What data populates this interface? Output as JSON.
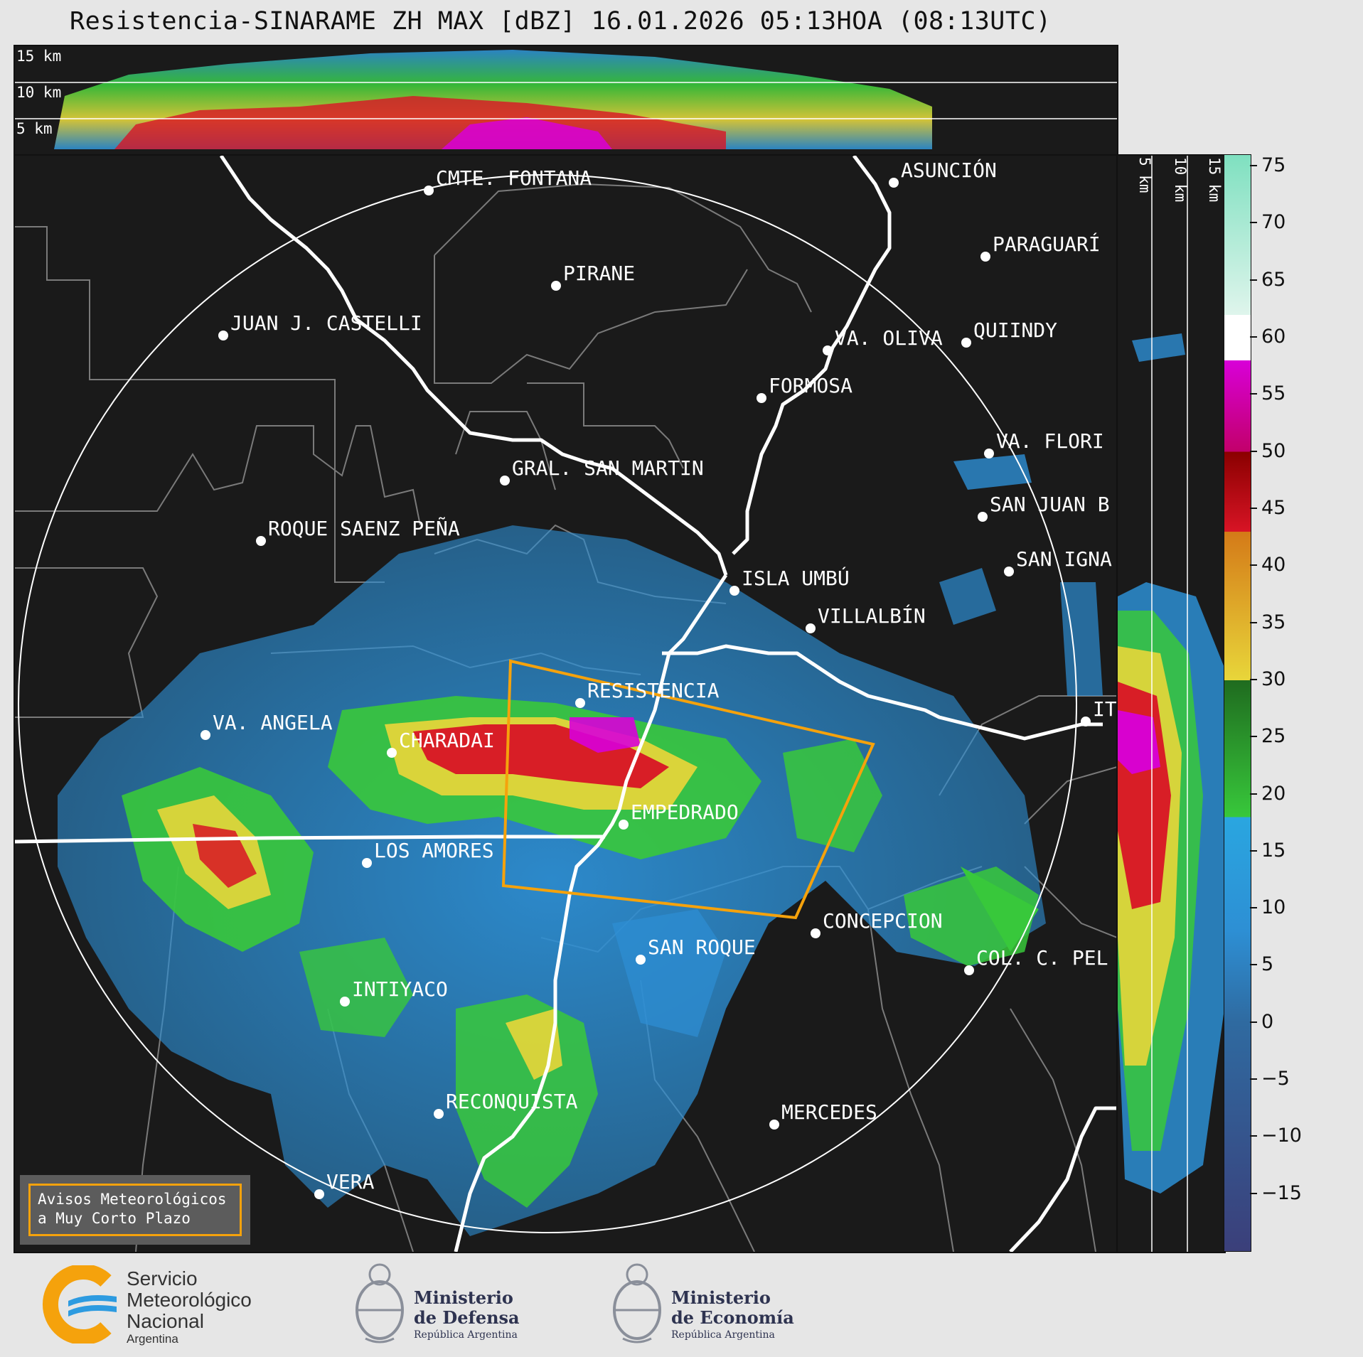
{
  "title": "Resistencia-SINARAME ZH MAX [dBZ] 16.01.2026 05:13HOA (08:13UTC)",
  "top_panel": {
    "height_labels": [
      "15 km",
      "10 km",
      "5 km"
    ]
  },
  "side_panel": {
    "height_labels": [
      "5 km",
      "10 km",
      "15 km"
    ]
  },
  "colorbar": {
    "unit": "dBZ",
    "ticks": [
      "75",
      "70",
      "65",
      "60",
      "55",
      "50",
      "45",
      "40",
      "35",
      "30",
      "25",
      "20",
      "15",
      "10",
      "5",
      "0",
      "−5",
      "−10",
      "−15"
    ],
    "colors": {
      "range_-20_0": "#3b3f7a",
      "range_0_18": "#2d8fd4",
      "range_18_30": "#38c83b",
      "range_30_43": "#e8d63a",
      "range_43_50": "#d81425",
      "range_50_58": "#d800d8",
      "range_58_62": "#ffffff",
      "range_62_76": "#7fe0c0"
    }
  },
  "cities": [
    {
      "name": "CMTE. FONTANA"
    },
    {
      "name": "ASUNCIÓN"
    },
    {
      "name": "PIRANE"
    },
    {
      "name": "PARAGUARÍ"
    },
    {
      "name": "JUAN J. CASTELLI"
    },
    {
      "name": "QUIINDY"
    },
    {
      "name": "VA. OLIVA"
    },
    {
      "name": "FORMOSA"
    },
    {
      "name": "VA. FLORI"
    },
    {
      "name": "GRAL. SAN MARTIN"
    },
    {
      "name": "SAN JUAN B"
    },
    {
      "name": "ROQUE SAENZ PEÑA"
    },
    {
      "name": "SAN IGNA"
    },
    {
      "name": "ISLA UMBÚ"
    },
    {
      "name": "VILLALBÍN"
    },
    {
      "name": "RESISTENCIA"
    },
    {
      "name": "VA. ANGELA"
    },
    {
      "name": "CHARADAI"
    },
    {
      "name": "EMPEDRADO"
    },
    {
      "name": "LOS AMORES"
    },
    {
      "name": "CONCEPCION"
    },
    {
      "name": "SAN ROQUE"
    },
    {
      "name": "COL. C. PEL"
    },
    {
      "name": "INTIYACO"
    },
    {
      "name": "RECONQUISTA"
    },
    {
      "name": "MERCEDES"
    },
    {
      "name": "VERA"
    },
    {
      "name": "IT"
    }
  ],
  "warning_box": {
    "line1": "Avisos Meteorológicos",
    "line2": "a Muy Corto Plazo"
  },
  "logos": {
    "smn": {
      "line1": "Servicio",
      "line2": "Meteorológico",
      "line3": "Nacional",
      "line4": "Argentina"
    },
    "defensa": {
      "line1": "Ministerio",
      "line2": "de Defensa",
      "line3": "República Argentina"
    },
    "economia": {
      "line1": "Ministerio",
      "line2": "de Economía",
      "line3": "República Argentina"
    }
  }
}
